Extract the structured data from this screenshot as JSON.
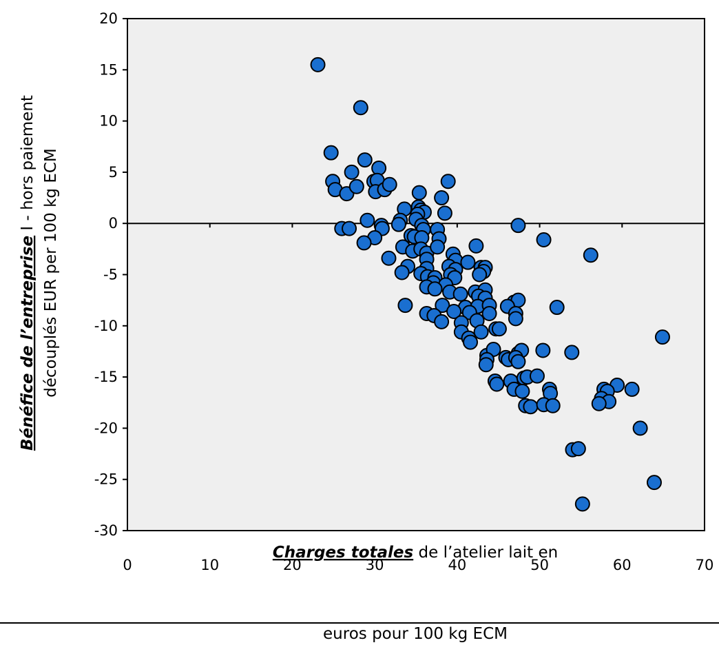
{
  "chart_data": {
    "type": "scatter",
    "title": "",
    "xlabel": {
      "emphasis": "Charges totales",
      "rest_line1": " de l’atelier lait en",
      "line2": "euros pour 100 kg ECM"
    },
    "ylabel": {
      "emphasis": "Bénéfice de l’entreprise",
      "rest_line1": " I - hors paiement",
      "line2": "découplés  EUR per 100 kg ECM"
    },
    "xlim": [
      0,
      70
    ],
    "ylim": [
      -30,
      20
    ],
    "x_ticks": [
      0,
      10,
      20,
      30,
      40,
      50,
      60,
      70
    ],
    "y_ticks": [
      20,
      15,
      10,
      5,
      0,
      -5,
      -10,
      -15,
      -20,
      -25,
      -30
    ],
    "grid": false,
    "legend": "none",
    "colors": {
      "marker_fill": "#1a6fd0",
      "marker_edge": "#000000",
      "plot_background": "#efefef"
    },
    "points": [
      [
        23.1,
        15.5
      ],
      [
        28.3,
        11.3
      ],
      [
        24.7,
        6.9
      ],
      [
        28.8,
        6.2
      ],
      [
        27.2,
        5.0
      ],
      [
        30.5,
        5.4
      ],
      [
        24.9,
        4.1
      ],
      [
        29.9,
        4.1
      ],
      [
        30.3,
        4.2
      ],
      [
        25.2,
        3.3
      ],
      [
        26.6,
        2.9
      ],
      [
        27.8,
        3.6
      ],
      [
        30.1,
        3.1
      ],
      [
        31.2,
        3.3
      ],
      [
        31.8,
        3.8
      ],
      [
        35.4,
        3.0
      ],
      [
        38.1,
        2.5
      ],
      [
        38.9,
        4.1
      ],
      [
        33.6,
        1.4
      ],
      [
        35.3,
        1.6
      ],
      [
        35.6,
        1.3
      ],
      [
        36.0,
        1.1
      ],
      [
        35.2,
        0.9
      ],
      [
        38.5,
        1.0
      ],
      [
        35.0,
        0.4
      ],
      [
        29.1,
        0.3
      ],
      [
        33.1,
        0.3
      ],
      [
        30.8,
        -0.2
      ],
      [
        30.9,
        -0.5
      ],
      [
        26.0,
        -0.5
      ],
      [
        26.9,
        -0.5
      ],
      [
        32.9,
        -0.1
      ],
      [
        35.7,
        -0.2
      ],
      [
        35.9,
        -0.6
      ],
      [
        37.6,
        -0.6
      ],
      [
        47.4,
        -0.2
      ],
      [
        30.0,
        -1.4
      ],
      [
        28.7,
        -1.9
      ],
      [
        34.4,
        -1.2
      ],
      [
        34.8,
        -1.3
      ],
      [
        35.7,
        -1.4
      ],
      [
        37.8,
        -1.5
      ],
      [
        50.5,
        -1.6
      ],
      [
        33.4,
        -2.3
      ],
      [
        34.6,
        -2.7
      ],
      [
        35.6,
        -2.5
      ],
      [
        36.3,
        -2.9
      ],
      [
        37.6,
        -2.3
      ],
      [
        42.3,
        -2.2
      ],
      [
        39.5,
        -3.0
      ],
      [
        31.7,
        -3.4
      ],
      [
        36.3,
        -3.5
      ],
      [
        39.8,
        -3.6
      ],
      [
        56.2,
        -3.1
      ],
      [
        34.0,
        -4.2
      ],
      [
        36.3,
        -4.4
      ],
      [
        39.0,
        -4.2
      ],
      [
        41.3,
        -3.8
      ],
      [
        39.8,
        -4.5
      ],
      [
        42.9,
        -4.3
      ],
      [
        43.4,
        -4.3
      ],
      [
        43.2,
        -4.7
      ],
      [
        33.3,
        -4.8
      ],
      [
        35.6,
        -4.9
      ],
      [
        36.4,
        -5.2
      ],
      [
        37.3,
        -5.3
      ],
      [
        39.2,
        -5.0
      ],
      [
        39.7,
        -5.3
      ],
      [
        42.7,
        -5.0
      ],
      [
        37.1,
        -5.8
      ],
      [
        36.3,
        -6.2
      ],
      [
        38.6,
        -6.0
      ],
      [
        37.3,
        -6.4
      ],
      [
        39.1,
        -6.7
      ],
      [
        42.2,
        -6.7
      ],
      [
        43.4,
        -6.5
      ],
      [
        40.4,
        -6.9
      ],
      [
        42.6,
        -7.1
      ],
      [
        43.4,
        -7.3
      ],
      [
        46.9,
        -7.7
      ],
      [
        47.4,
        -7.5
      ],
      [
        33.7,
        -8.0
      ],
      [
        38.2,
        -8.0
      ],
      [
        41.0,
        -8.2
      ],
      [
        42.5,
        -8.1
      ],
      [
        43.9,
        -8.0
      ],
      [
        46.1,
        -8.1
      ],
      [
        52.1,
        -8.2
      ],
      [
        36.3,
        -8.8
      ],
      [
        37.2,
        -9.0
      ],
      [
        39.6,
        -8.6
      ],
      [
        41.5,
        -8.7
      ],
      [
        43.9,
        -8.8
      ],
      [
        42.4,
        -9.5
      ],
      [
        47.1,
        -8.8
      ],
      [
        38.1,
        -9.6
      ],
      [
        40.5,
        -9.7
      ],
      [
        44.7,
        -10.3
      ],
      [
        45.1,
        -10.3
      ],
      [
        40.5,
        -10.6
      ],
      [
        42.9,
        -10.6
      ],
      [
        47.1,
        -9.3
      ],
      [
        41.4,
        -11.2
      ],
      [
        41.6,
        -11.6
      ],
      [
        43.6,
        -12.9
      ],
      [
        44.4,
        -12.3
      ],
      [
        47.4,
        -12.7
      ],
      [
        47.8,
        -12.4
      ],
      [
        50.4,
        -12.4
      ],
      [
        53.9,
        -12.6
      ],
      [
        43.6,
        -13.3
      ],
      [
        43.5,
        -13.8
      ],
      [
        45.9,
        -13.1
      ],
      [
        46.2,
        -13.3
      ],
      [
        47.1,
        -13.1
      ],
      [
        47.4,
        -13.5
      ],
      [
        64.9,
        -11.1
      ],
      [
        46.5,
        -15.4
      ],
      [
        44.6,
        -15.4
      ],
      [
        44.8,
        -15.7
      ],
      [
        48.1,
        -15.1
      ],
      [
        48.5,
        -15.0
      ],
      [
        49.7,
        -14.9
      ],
      [
        59.4,
        -15.8
      ],
      [
        51.2,
        -16.2
      ],
      [
        51.3,
        -16.6
      ],
      [
        57.8,
        -16.2
      ],
      [
        58.2,
        -16.4
      ],
      [
        61.2,
        -16.2
      ],
      [
        46.9,
        -16.2
      ],
      [
        47.9,
        -16.4
      ],
      [
        57.5,
        -17.1
      ],
      [
        58.4,
        -17.4
      ],
      [
        57.2,
        -17.6
      ],
      [
        48.3,
        -17.8
      ],
      [
        48.9,
        -17.9
      ],
      [
        50.5,
        -17.7
      ],
      [
        51.6,
        -17.8
      ],
      [
        62.2,
        -20.0
      ],
      [
        54.0,
        -22.1
      ],
      [
        54.7,
        -22.0
      ],
      [
        63.9,
        -25.3
      ],
      [
        55.2,
        -27.4
      ]
    ]
  }
}
